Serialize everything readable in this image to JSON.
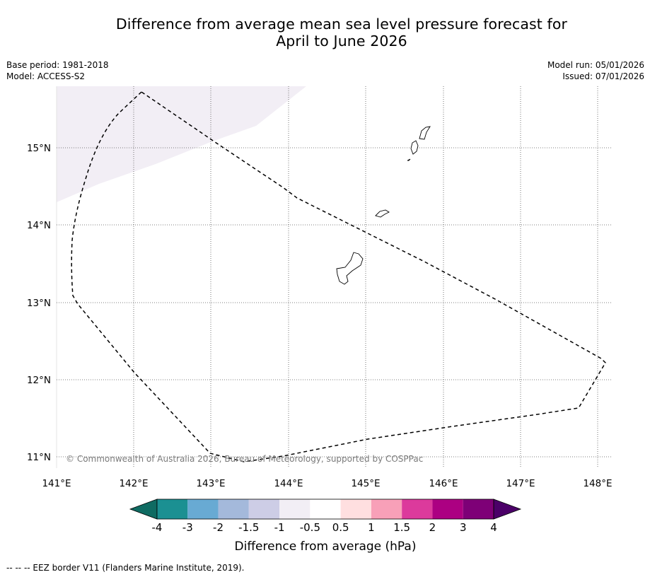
{
  "title_line1": "Difference from average mean sea level pressure forecast for",
  "title_line2": "April to June 2026",
  "meta_left": {
    "base_period": "Base period: 1981-2018",
    "model": "Model: ACCESS-S2"
  },
  "meta_right": {
    "model_run": "Model run: 05/01/2026",
    "issued": "Issued: 07/01/2026"
  },
  "map": {
    "lon_labels": [
      "141°E",
      "142°E",
      "143°E",
      "144°E",
      "145°E",
      "146°E",
      "147°E",
      "148°E"
    ],
    "lat_labels": [
      "15°N",
      "14°N",
      "13°N",
      "12°N",
      "11°N"
    ],
    "copyright": "© Commonwealth of Australia 2026, Bureau of Meteorology, supported by COSPPac",
    "shaded_region_class": "-1 to -0.5",
    "shaded_color": "#f2eef5"
  },
  "colorbar": {
    "label": "Difference from average (hPa)",
    "tick_labels": [
      "-4",
      "-3",
      "-2",
      "-1.5",
      "-1",
      "-0.5",
      "0.5",
      "1",
      "1.5",
      "2",
      "3",
      "4"
    ],
    "colors": [
      "#0f6b62",
      "#1b9092",
      "#68aad3",
      "#a4b9db",
      "#cdcde6",
      "#f2eef5",
      "#ffffff",
      "#ffdfe0",
      "#f8a0b8",
      "#dc3a9c",
      "#ac0082",
      "#7e0077",
      "#4b0068"
    ]
  },
  "footer": "--  --  -- EEZ border V11 (Flanders Marine Institute, 2019)."
}
